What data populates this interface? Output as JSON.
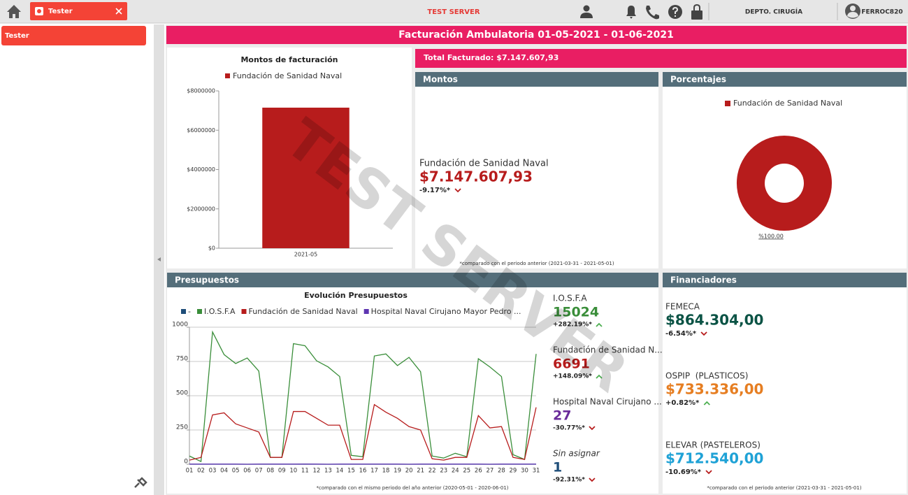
{
  "topbar": {
    "tab": "Tester",
    "server": "TEST SERVER",
    "department": "DEPTO. CIRUGÍA",
    "user": "FERROC820"
  },
  "sidebar": {
    "items": [
      "Tester"
    ]
  },
  "header": {
    "title": "Facturación Ambulatoria 01-05-2021 - 01-06-2021",
    "total": "Total Facturado: $7.147.607,93"
  },
  "montos": {
    "heading": "Montos",
    "name": "Fundación de Sanidad Naval",
    "amount": "$7.147.607,93",
    "change": "-9.17%*",
    "trend": "down",
    "note": "*comparado con el periodo anterior (2021-03-31 - 2021-05-01)"
  },
  "porcentajes": {
    "heading": "Porcentajes"
  },
  "presupuestos": {
    "heading": "Presupuestos",
    "stats": [
      {
        "name": "I.O.S.F.A",
        "total": 15024,
        "change": "+282.19%*",
        "trend": "up",
        "color": "#3a8e3a",
        "italic": false
      },
      {
        "name": "Fundación de Sanidad N...",
        "total": 6691,
        "change": "+148.09%*",
        "trend": "up",
        "color": "#b71c1c",
        "italic": false
      },
      {
        "name": "Hospital Naval Cirujano ...",
        "total": 27,
        "change": "-30.77%*",
        "trend": "down",
        "color": "#6a2c9a",
        "italic": false
      },
      {
        "name": "Sin asignar",
        "total": 1,
        "change": "-92.31%*",
        "trend": "down",
        "color": "#1f4e79",
        "italic": true
      }
    ],
    "note": "*comparado con el mismo periodo del año anterior (2020-05-01 - 2020-06-01)"
  },
  "financiadores": {
    "heading": "Financiadores",
    "items": [
      {
        "name": "FEMECA",
        "amount": "$864.304,00",
        "change": "-6.54%*",
        "trend": "down",
        "color": "#0b5345"
      },
      {
        "name": "OSPIP  (PLASTICOS)",
        "amount": "$733.336,00",
        "change": "+0.82%*",
        "trend": "up",
        "color": "#e67e22"
      },
      {
        "name": "ELEVAR (PASTELEROS)",
        "amount": "$712.540,00",
        "change": "-10.69%*",
        "trend": "down",
        "color": "#1fa2d6"
      }
    ],
    "note": "*comparado con el periodo anterior (2021-03-31 - 2021-05-01)"
  },
  "watermark": "TEST SERVER",
  "chart_data": [
    {
      "type": "bar",
      "title": "Montos de facturación",
      "categories": [
        "2021-05"
      ],
      "series": [
        {
          "name": "Fundación de Sanidad Naval",
          "color": "#b71c1c",
          "values": [
            7147607.93
          ]
        }
      ],
      "ylim": [
        0,
        8000000
      ],
      "yticks": [
        {
          "value": 0,
          "label": "$0"
        },
        {
          "value": 2000000,
          "label": "$2000000"
        },
        {
          "value": 4000000,
          "label": "$4000000"
        },
        {
          "value": 6000000,
          "label": "$6000000"
        },
        {
          "value": 8000000,
          "label": "$8000000"
        }
      ]
    },
    {
      "type": "pie",
      "categories": [
        "Fundación de Sanidad Naval"
      ],
      "values": [
        100
      ],
      "value_labels": [
        "%100.00"
      ],
      "colors": [
        "#b71c1c"
      ],
      "donut": true
    },
    {
      "type": "line",
      "title": "Evolución Presupuestos",
      "categories": [
        "01",
        "02",
        "03",
        "04",
        "05",
        "06",
        "07",
        "08",
        "09",
        "10",
        "11",
        "12",
        "13",
        "14",
        "15",
        "16",
        "17",
        "18",
        "19",
        "20",
        "21",
        "22",
        "23",
        "24",
        "25",
        "26",
        "27",
        "28",
        "29",
        "30",
        "31"
      ],
      "series": [
        {
          "name": "-",
          "color": "#1f4e79",
          "values": [
            0,
            0,
            0,
            0,
            0,
            0,
            0,
            0,
            0,
            0,
            1,
            0,
            0,
            0,
            0,
            0,
            0,
            0,
            0,
            0,
            0,
            0,
            0,
            0,
            0,
            0,
            0,
            0,
            0,
            0,
            0
          ]
        },
        {
          "name": "I.O.S.F.A",
          "color": "#3a8e3a",
          "values": [
            60,
            20,
            965,
            800,
            735,
            775,
            680,
            50,
            50,
            880,
            865,
            755,
            710,
            640,
            65,
            55,
            790,
            805,
            720,
            780,
            675,
            60,
            45,
            80,
            55,
            770,
            710,
            640,
            70,
            35,
            805
          ]
        },
        {
          "name": "Fundación de Sanidad Naval",
          "color": "#b71c1c",
          "values": [
            30,
            50,
            360,
            375,
            295,
            265,
            235,
            50,
            50,
            385,
            385,
            335,
            285,
            285,
            35,
            35,
            435,
            380,
            335,
            275,
            250,
            40,
            30,
            50,
            50,
            355,
            265,
            275,
            50,
            35,
            415
          ]
        },
        {
          "name": "Hospital Naval Cirujano Mayor Pedro ...",
          "color": "#5e35b1",
          "values": [
            1,
            1,
            1,
            1,
            1,
            0,
            1,
            1,
            1,
            1,
            1,
            1,
            0,
            1,
            1,
            1,
            1,
            1,
            1,
            0,
            1,
            1,
            1,
            1,
            1,
            1,
            0,
            1,
            1,
            1,
            1
          ]
        }
      ],
      "ylim": [
        0,
        1000
      ],
      "yticks": [
        0,
        250,
        500,
        750,
        1000
      ],
      "grid": true
    }
  ]
}
